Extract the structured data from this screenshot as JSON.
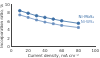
{
  "chart_data": {
    "type": "line",
    "x_label": "Current density, mA cm⁻²",
    "y_label": "Incorporation ratio, %",
    "x": [
      10,
      20,
      30,
      40,
      50,
      60,
      80
    ],
    "series": [
      {
        "name": "Ni-MoS₂",
        "color": "#3b6ea5",
        "marker": "circle",
        "values": [
          8.6,
          8.0,
          7.4,
          7.0,
          6.6,
          6.2,
          5.6
        ]
      },
      {
        "name": "Ni-WS₂",
        "color": "#6a8fbf",
        "marker": "rect",
        "values": [
          7.6,
          7.0,
          6.4,
          5.9,
          5.5,
          5.1,
          4.6
        ]
      }
    ],
    "xlim": [
      0,
      100
    ],
    "xticks": [
      0,
      20,
      40,
      60,
      80,
      100
    ],
    "ylim": [
      0,
      10
    ],
    "yticks": [
      0,
      2,
      4,
      6,
      8,
      10
    ],
    "grid": false
  }
}
